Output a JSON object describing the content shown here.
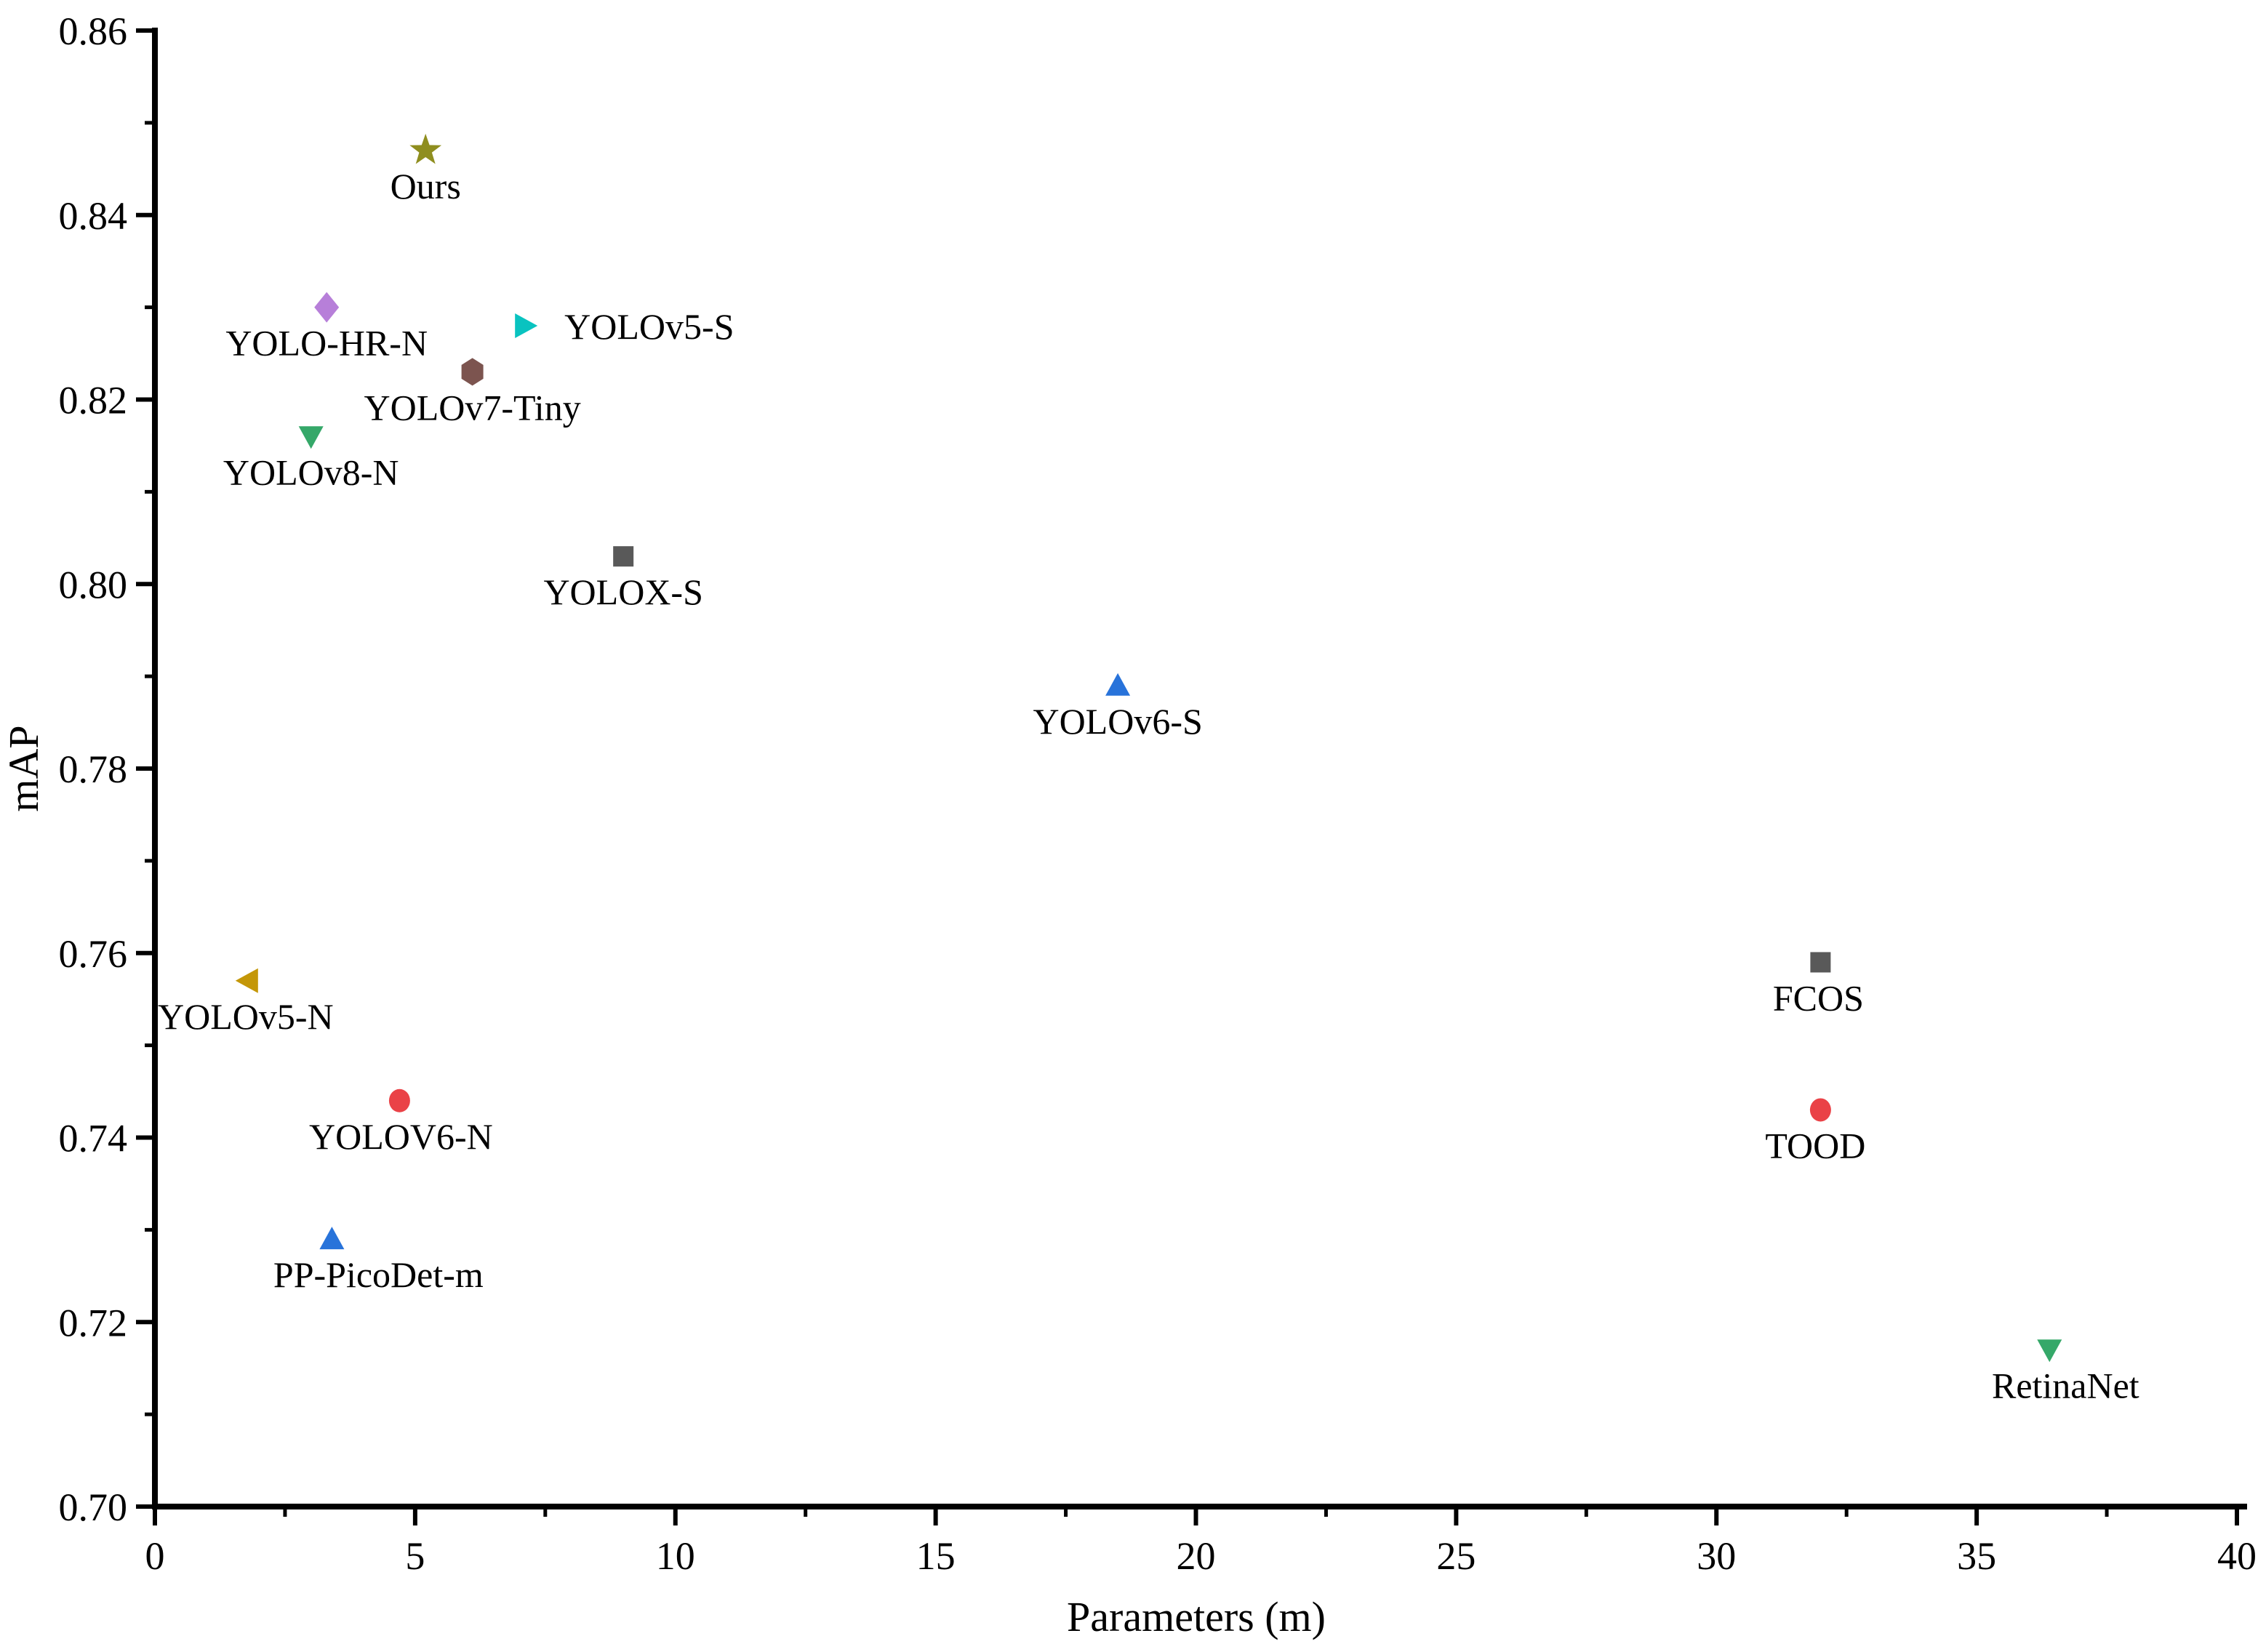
{
  "chart_data": {
    "type": "scatter",
    "title": "",
    "xlabel": "Parameters (m)",
    "ylabel": "mAP",
    "xlim": [
      0,
      40
    ],
    "ylim": [
      0.7,
      0.86
    ],
    "grid": false,
    "legend": "none",
    "x_major_ticks": [
      0,
      5,
      10,
      15,
      20,
      25,
      30,
      35,
      40
    ],
    "x_minor_ticks": [
      2.5,
      7.5,
      12.5,
      17.5,
      22.5,
      27.5,
      32.5,
      37.5
    ],
    "y_major_ticks": [
      0.7,
      0.72,
      0.74,
      0.76,
      0.78,
      0.8,
      0.82,
      0.84,
      0.86
    ],
    "y_minor_ticks": [
      0.71,
      0.73,
      0.75,
      0.77,
      0.79,
      0.81,
      0.83,
      0.85
    ],
    "axis_color": "#000000",
    "points": [
      {
        "label": "Ours",
        "x": 5.2,
        "y": 0.847,
        "marker": "star",
        "color": "#8f8e1f",
        "label_pos": "below",
        "label_dx": 0
      },
      {
        "label": "YOLO-HR-N",
        "x": 3.3,
        "y": 0.83,
        "marker": "diamond",
        "color": "#b77fd9",
        "label_pos": "below",
        "label_dx": 0
      },
      {
        "label": "YOLOv5-S",
        "x": 7.1,
        "y": 0.828,
        "marker": "triangle-right",
        "color": "#09c3c0",
        "label_pos": "right",
        "label_dx": 0
      },
      {
        "label": "YOLOv7-Tiny",
        "x": 6.1,
        "y": 0.823,
        "marker": "hexagon",
        "color": "#7c544f",
        "label_pos": "below",
        "label_dx": 0
      },
      {
        "label": "YOLOv8-N",
        "x": 3.0,
        "y": 0.816,
        "marker": "triangle-down",
        "color": "#35a869",
        "label_pos": "below",
        "label_dx": 0
      },
      {
        "label": "YOLOX-S",
        "x": 9.0,
        "y": 0.803,
        "marker": "square",
        "color": "#595959",
        "label_pos": "below",
        "label_dx": 0
      },
      {
        "label": "YOLOv6-S",
        "x": 18.5,
        "y": 0.789,
        "marker": "triangle-up",
        "color": "#2873da",
        "label_pos": "below",
        "label_dx": 0
      },
      {
        "label": "YOLOv5-N",
        "x": 1.8,
        "y": 0.757,
        "marker": "triangle-left",
        "color": "#c49708",
        "label_pos": "below",
        "label_dx": -4
      },
      {
        "label": "YOLOV6-N",
        "x": 4.7,
        "y": 0.744,
        "marker": "circle",
        "color": "#ea4247",
        "label_pos": "below",
        "label_dx": 2
      },
      {
        "label": "PP-PicoDet-m",
        "x": 3.4,
        "y": 0.729,
        "marker": "triangle-up",
        "color": "#2873da",
        "label_pos": "below",
        "label_dx": 64
      },
      {
        "label": "FCOS",
        "x": 32.0,
        "y": 0.759,
        "marker": "square",
        "color": "#595959",
        "label_pos": "below",
        "label_dx": -3
      },
      {
        "label": "TOOD",
        "x": 32.0,
        "y": 0.743,
        "marker": "circle",
        "color": "#ea4247",
        "label_pos": "below",
        "label_dx": -7
      },
      {
        "label": "RetinaNet",
        "x": 36.4,
        "y": 0.717,
        "marker": "triangle-down",
        "color": "#35a869",
        "label_pos": "below",
        "label_dx": 22
      }
    ]
  }
}
